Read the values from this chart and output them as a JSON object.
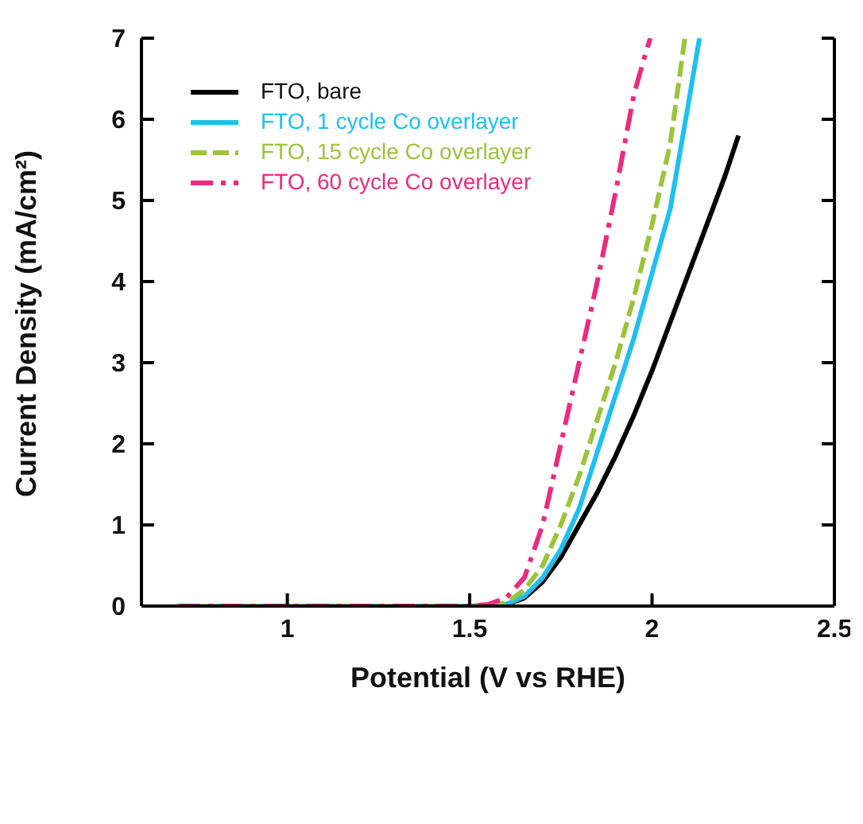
{
  "chart_data": {
    "type": "line",
    "xlabel": "Potential (V vs RHE)",
    "ylabel": "Current Density (mA/cm²)",
    "xlim": [
      0.6,
      2.5
    ],
    "xticks": [
      1,
      1.5,
      2,
      2.5
    ],
    "ylim": [
      0,
      7
    ],
    "yticks": [
      0,
      1,
      2,
      3,
      4,
      5,
      6,
      7
    ],
    "grid": false,
    "legend": "top left",
    "marker": "none",
    "series": [
      {
        "name": "FTO, bare",
        "color": "#000000",
        "line_style": "solid",
        "x": [
          0.7,
          1.5,
          1.6,
          1.65,
          1.7,
          1.75,
          1.8,
          1.85,
          1.9,
          1.95,
          2.0,
          2.05,
          2.1,
          2.15,
          2.2,
          2.237
        ],
        "values": [
          0,
          0,
          0.02,
          0.1,
          0.3,
          0.6,
          1.0,
          1.4,
          1.85,
          2.35,
          2.9,
          3.5,
          4.1,
          4.7,
          5.3,
          5.8
        ]
      },
      {
        "name": "FTO, 1 cycle Co overlayer",
        "color": "#1ec0f0",
        "line_style": "solid",
        "x": [
          0.7,
          1.55,
          1.6,
          1.65,
          1.7,
          1.75,
          1.8,
          1.85,
          1.9,
          1.95,
          2.0,
          2.05,
          2.1,
          2.13
        ],
        "values": [
          0,
          0,
          0.02,
          0.12,
          0.35,
          0.7,
          1.2,
          1.9,
          2.6,
          3.3,
          4.1,
          4.9,
          6.2,
          7
        ]
      },
      {
        "name": "FTO, 15 cycle Co overlayer",
        "color": "#9ac43c",
        "line_style": "dashed",
        "x": [
          0.7,
          1.55,
          1.6,
          1.65,
          1.7,
          1.75,
          1.8,
          1.85,
          1.9,
          1.95,
          2.0,
          2.05,
          2.09
        ],
        "values": [
          0,
          0,
          0.04,
          0.2,
          0.5,
          1.0,
          1.6,
          2.3,
          3.0,
          3.8,
          4.7,
          5.7,
          7
        ]
      },
      {
        "name": "FTO, 60 cycle Co overlayer",
        "color": "#ec2a80",
        "line_style": "dashdot",
        "x": [
          0.7,
          1.5,
          1.55,
          1.6,
          1.65,
          1.7,
          1.75,
          1.8,
          1.85,
          1.9,
          1.95,
          1.975,
          1.995
        ],
        "values": [
          0,
          0,
          0.02,
          0.1,
          0.35,
          1.0,
          2.0,
          3.0,
          4.0,
          5.1,
          6.3,
          6.7,
          7
        ]
      }
    ]
  }
}
